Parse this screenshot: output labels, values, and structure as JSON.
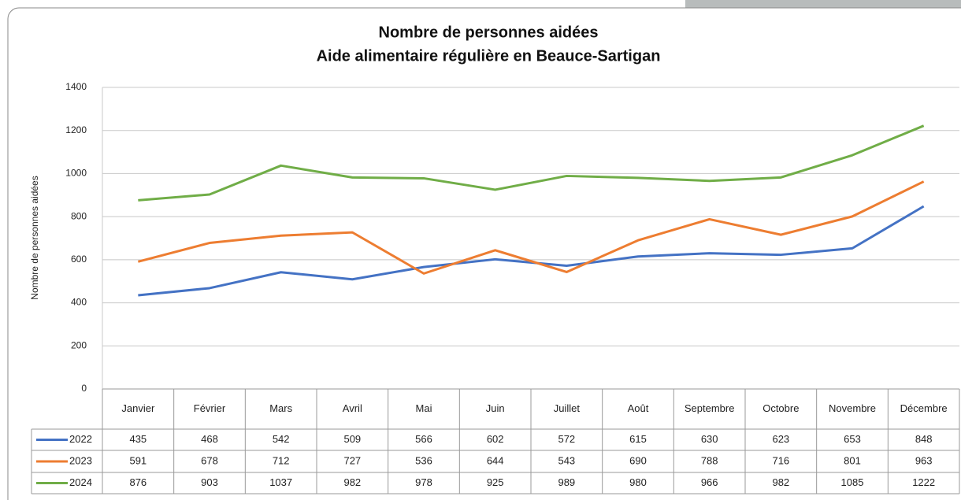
{
  "chart_data": {
    "type": "line",
    "title": "Nombre de personnes aidées",
    "subtitle": "Aide alimentaire régulière en Beauce-Sartigan",
    "y_label": "Nombre de personnes aidées",
    "categories": [
      "Janvier",
      "Février",
      "Mars",
      "Avril",
      "Mai",
      "Juin",
      "Juillet",
      "Août",
      "Septembre",
      "Octobre",
      "Novembre",
      "Décembre"
    ],
    "series": [
      {
        "name": "2022",
        "color": "#4472c4",
        "values": [
          435,
          468,
          542,
          509,
          566,
          602,
          572,
          615,
          630,
          623,
          653,
          848
        ]
      },
      {
        "name": "2023",
        "color": "#ed7d31",
        "values": [
          591,
          678,
          712,
          727,
          536,
          644,
          543,
          690,
          788,
          716,
          801,
          963
        ]
      },
      {
        "name": "2024",
        "color": "#70ad47",
        "values": [
          876,
          903,
          1037,
          982,
          978,
          925,
          989,
          980,
          966,
          982,
          1085,
          1222
        ]
      }
    ],
    "ylim": [
      0,
      1400
    ],
    "yticks": [
      0,
      200,
      400,
      600,
      800,
      1000,
      1200,
      1400
    ],
    "grid": true
  }
}
